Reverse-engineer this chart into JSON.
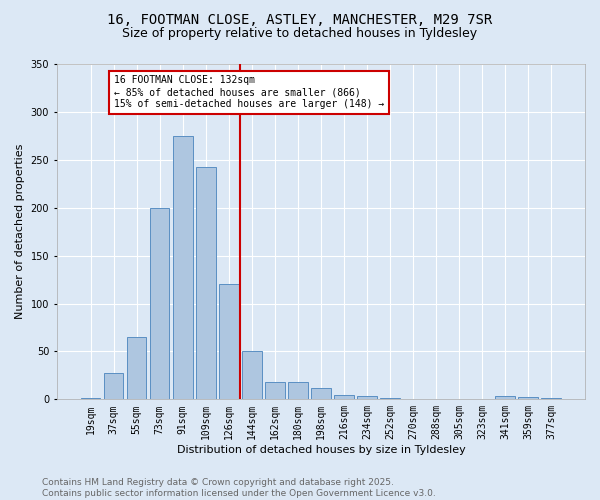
{
  "title_line1": "16, FOOTMAN CLOSE, ASTLEY, MANCHESTER, M29 7SR",
  "title_line2": "Size of property relative to detached houses in Tyldesley",
  "xlabel": "Distribution of detached houses by size in Tyldesley",
  "ylabel": "Number of detached properties",
  "categories": [
    "19sqm",
    "37sqm",
    "55sqm",
    "73sqm",
    "91sqm",
    "109sqm",
    "126sqm",
    "144sqm",
    "162sqm",
    "180sqm",
    "198sqm",
    "216sqm",
    "234sqm",
    "252sqm",
    "270sqm",
    "288sqm",
    "305sqm",
    "323sqm",
    "341sqm",
    "359sqm",
    "377sqm"
  ],
  "values": [
    1,
    28,
    65,
    200,
    275,
    243,
    120,
    50,
    18,
    18,
    12,
    5,
    4,
    1,
    0,
    0,
    0,
    0,
    3,
    2,
    1
  ],
  "bar_color": "#aec6e0",
  "bar_edge_color": "#5a8fc3",
  "ylim": [
    0,
    350
  ],
  "yticks": [
    0,
    50,
    100,
    150,
    200,
    250,
    300,
    350
  ],
  "vline_color": "#cc0000",
  "annotation_text": "16 FOOTMAN CLOSE: 132sqm\n← 85% of detached houses are smaller (866)\n15% of semi-detached houses are larger (148) →",
  "annotation_box_color": "#ffffff",
  "annotation_box_edge": "#cc0000",
  "footer_text": "Contains HM Land Registry data © Crown copyright and database right 2025.\nContains public sector information licensed under the Open Government Licence v3.0.",
  "background_color": "#dce8f5",
  "plot_bg_color": "#dce8f5",
  "grid_color": "#ffffff",
  "title_fontsize": 10,
  "subtitle_fontsize": 9,
  "axis_label_fontsize": 8,
  "tick_fontsize": 7,
  "footer_fontsize": 6.5
}
